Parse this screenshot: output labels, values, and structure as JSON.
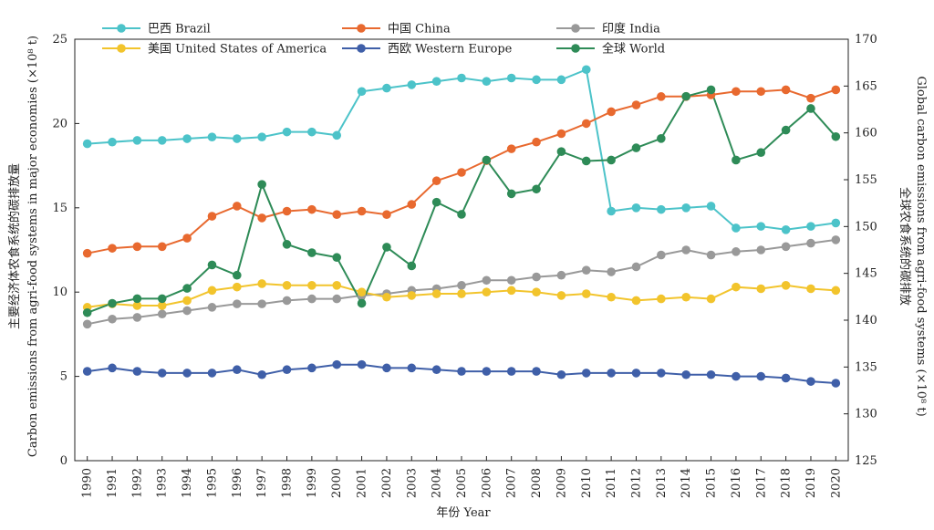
{
  "chart_data": {
    "type": "line",
    "x": [
      1990,
      1991,
      1992,
      1993,
      1994,
      1995,
      1996,
      1997,
      1998,
      1999,
      2000,
      2001,
      2002,
      2003,
      2004,
      2005,
      2006,
      2007,
      2008,
      2009,
      2010,
      2011,
      2012,
      2013,
      2014,
      2015,
      2016,
      2017,
      2018,
      2019,
      2020
    ],
    "xlabel": "年份 Year",
    "ylabel_left": "主要经济体农食系统的碳排放量",
    "ylabel_left_en": "Carbon emissions from agri-food systems in major economies (×10⁸ t)",
    "ylabel_right": "全球农食系统的碳排放",
    "ylabel_right_en": "Global carbon emissions from agri-food systems (×10⁸ t)",
    "ylim_left": [
      0,
      25
    ],
    "yticks_left": [
      0,
      5,
      10,
      15,
      20,
      25
    ],
    "ylim_right": [
      125,
      170
    ],
    "yticks_right": [
      125,
      130,
      135,
      140,
      145,
      150,
      155,
      160,
      165,
      170
    ],
    "grid": false,
    "legend_position": "top",
    "series": [
      {
        "name": "巴西 Brazil",
        "axis": "left",
        "color": "#4cc3c9",
        "values": [
          18.8,
          18.9,
          19.0,
          19.0,
          19.1,
          19.2,
          19.1,
          19.2,
          19.5,
          19.5,
          19.3,
          21.9,
          22.1,
          22.3,
          22.5,
          22.7,
          22.5,
          22.7,
          22.6,
          22.6,
          23.2,
          14.8,
          15.0,
          14.9,
          15.0,
          15.1,
          13.8,
          13.9,
          13.7,
          13.9,
          14.1
        ]
      },
      {
        "name": "中国 China",
        "axis": "left",
        "color": "#e8692f",
        "values": [
          12.3,
          12.6,
          12.7,
          12.7,
          13.2,
          14.5,
          15.1,
          14.4,
          14.8,
          14.9,
          14.6,
          14.8,
          14.6,
          15.2,
          16.6,
          17.1,
          17.8,
          18.5,
          18.9,
          19.4,
          20.0,
          20.7,
          21.1,
          21.6,
          21.6,
          21.7,
          21.9,
          21.9,
          22.0,
          21.5,
          22.0
        ]
      },
      {
        "name": "印度 India",
        "axis": "left",
        "color": "#999999",
        "values": [
          8.1,
          8.4,
          8.5,
          8.7,
          8.9,
          9.1,
          9.3,
          9.3,
          9.5,
          9.6,
          9.6,
          9.8,
          9.9,
          10.1,
          10.2,
          10.4,
          10.7,
          10.7,
          10.9,
          11.0,
          11.3,
          11.2,
          11.5,
          12.2,
          12.5,
          12.2,
          12.4,
          12.5,
          12.7,
          12.9,
          13.1
        ]
      },
      {
        "name": "美国 United States of America",
        "axis": "left",
        "color": "#f2c42c",
        "values": [
          9.1,
          9.3,
          9.2,
          9.2,
          9.5,
          10.1,
          10.3,
          10.5,
          10.4,
          10.4,
          10.4,
          10.0,
          9.7,
          9.8,
          9.9,
          9.9,
          10.0,
          10.1,
          10.0,
          9.8,
          9.9,
          9.7,
          9.5,
          9.6,
          9.7,
          9.6,
          10.3,
          10.2,
          10.4,
          10.2,
          10.1
        ]
      },
      {
        "name": "西欧 Western Europe",
        "axis": "left",
        "color": "#3f5fa8",
        "values": [
          5.3,
          5.5,
          5.3,
          5.2,
          5.2,
          5.2,
          5.4,
          5.1,
          5.4,
          5.5,
          5.7,
          5.7,
          5.5,
          5.5,
          5.4,
          5.3,
          5.3,
          5.3,
          5.3,
          5.1,
          5.2,
          5.2,
          5.2,
          5.2,
          5.1,
          5.1,
          5.0,
          5.0,
          4.9,
          4.7,
          4.6
        ]
      },
      {
        "name": "全球 World",
        "axis": "right",
        "color": "#2e8b57",
        "values": [
          140.8,
          141.8,
          142.3,
          142.3,
          143.4,
          145.9,
          144.8,
          154.5,
          148.1,
          147.2,
          146.7,
          141.8,
          147.8,
          145.8,
          152.6,
          151.3,
          157.1,
          153.5,
          154.0,
          158.0,
          157.0,
          157.1,
          158.4,
          159.4,
          163.9,
          164.6,
          157.1,
          157.9,
          160.3,
          162.6,
          159.6
        ]
      }
    ]
  }
}
